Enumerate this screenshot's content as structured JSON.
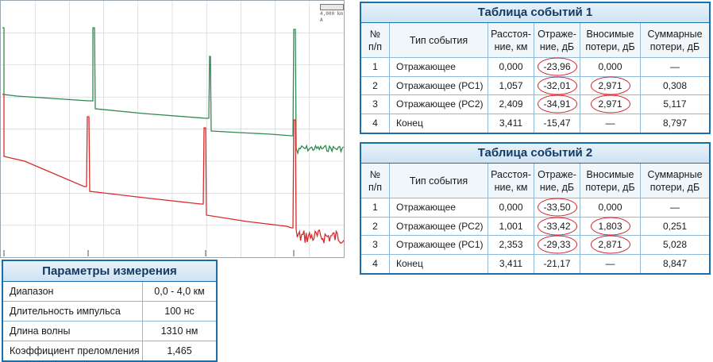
{
  "trace": {
    "readout_line1": "",
    "readout_line2": "4,000 km A",
    "colors": {
      "green": "#2f8a4f",
      "red": "#d62b2b",
      "grid": "#c9ced3",
      "marker": "#555555"
    },
    "icon": "otdr-trace-graph"
  },
  "table1": {
    "title": "Таблица событий 1",
    "headers": [
      "№\nп/п",
      "Тип события",
      "Расстоя-\nние, км",
      "Отраже-\nние, дБ",
      "Вносимые\nпотери, дБ",
      "Суммарные\nпотери, дБ"
    ],
    "rows": [
      {
        "n": "1",
        "type": "Отражающее",
        "distance": "0,000",
        "reflection": "-23,96",
        "insertion": "0,000",
        "total": "—",
        "circle_reflection": true,
        "circle_insertion": false
      },
      {
        "n": "2",
        "type": "Отражающее (РС1)",
        "distance": "1,057",
        "reflection": "-32,01",
        "insertion": "2,971",
        "total": "0,308",
        "circle_reflection": true,
        "circle_insertion": true
      },
      {
        "n": "3",
        "type": "Отражающее (РС2)",
        "distance": "2,409",
        "reflection": "-34,91",
        "insertion": "2,971",
        "total": "5,117",
        "circle_reflection": true,
        "circle_insertion": true
      },
      {
        "n": "4",
        "type": "Конец",
        "distance": "3,411",
        "reflection": "-15,47",
        "insertion": "—",
        "total": "8,797",
        "circle_reflection": false,
        "circle_insertion": false
      }
    ]
  },
  "table2": {
    "title": "Таблица событий 2",
    "headers": [
      "№\nп/п",
      "Тип события",
      "Расстоя-\nние, км",
      "Отраже-\nние, дБ",
      "Вносимые\nпотери, дБ",
      "Суммарные\nпотери, дБ"
    ],
    "rows": [
      {
        "n": "1",
        "type": "Отражающее",
        "distance": "0,000",
        "reflection": "-33,50",
        "insertion": "0,000",
        "total": "—",
        "circle_reflection": true,
        "circle_insertion": false
      },
      {
        "n": "2",
        "type": "Отражающее (РС2)",
        "distance": "1,001",
        "reflection": "-33,42",
        "insertion": "1,803",
        "total": "0,251",
        "circle_reflection": true,
        "circle_insertion": true
      },
      {
        "n": "3",
        "type": "Отражающее (РС1)",
        "distance": "2,353",
        "reflection": "-29,33",
        "insertion": "2,871",
        "total": "5,028",
        "circle_reflection": true,
        "circle_insertion": true
      },
      {
        "n": "4",
        "type": "Конец",
        "distance": "3,411",
        "reflection": "-21,17",
        "insertion": "—",
        "total": "8,847",
        "circle_reflection": false,
        "circle_insertion": false
      }
    ]
  },
  "params": {
    "title": "Параметры измерения",
    "rows": [
      {
        "label": "Диапазон",
        "value": "0,0 - 4,0 км"
      },
      {
        "label": "Длительность импульса",
        "value": "100 нс"
      },
      {
        "label": "Длина волны",
        "value": "1310 нм"
      },
      {
        "label": "Коэффициент преломления",
        "value": "1,465"
      }
    ]
  },
  "accent": "#1b6fa8",
  "highlight": "#d3222a"
}
